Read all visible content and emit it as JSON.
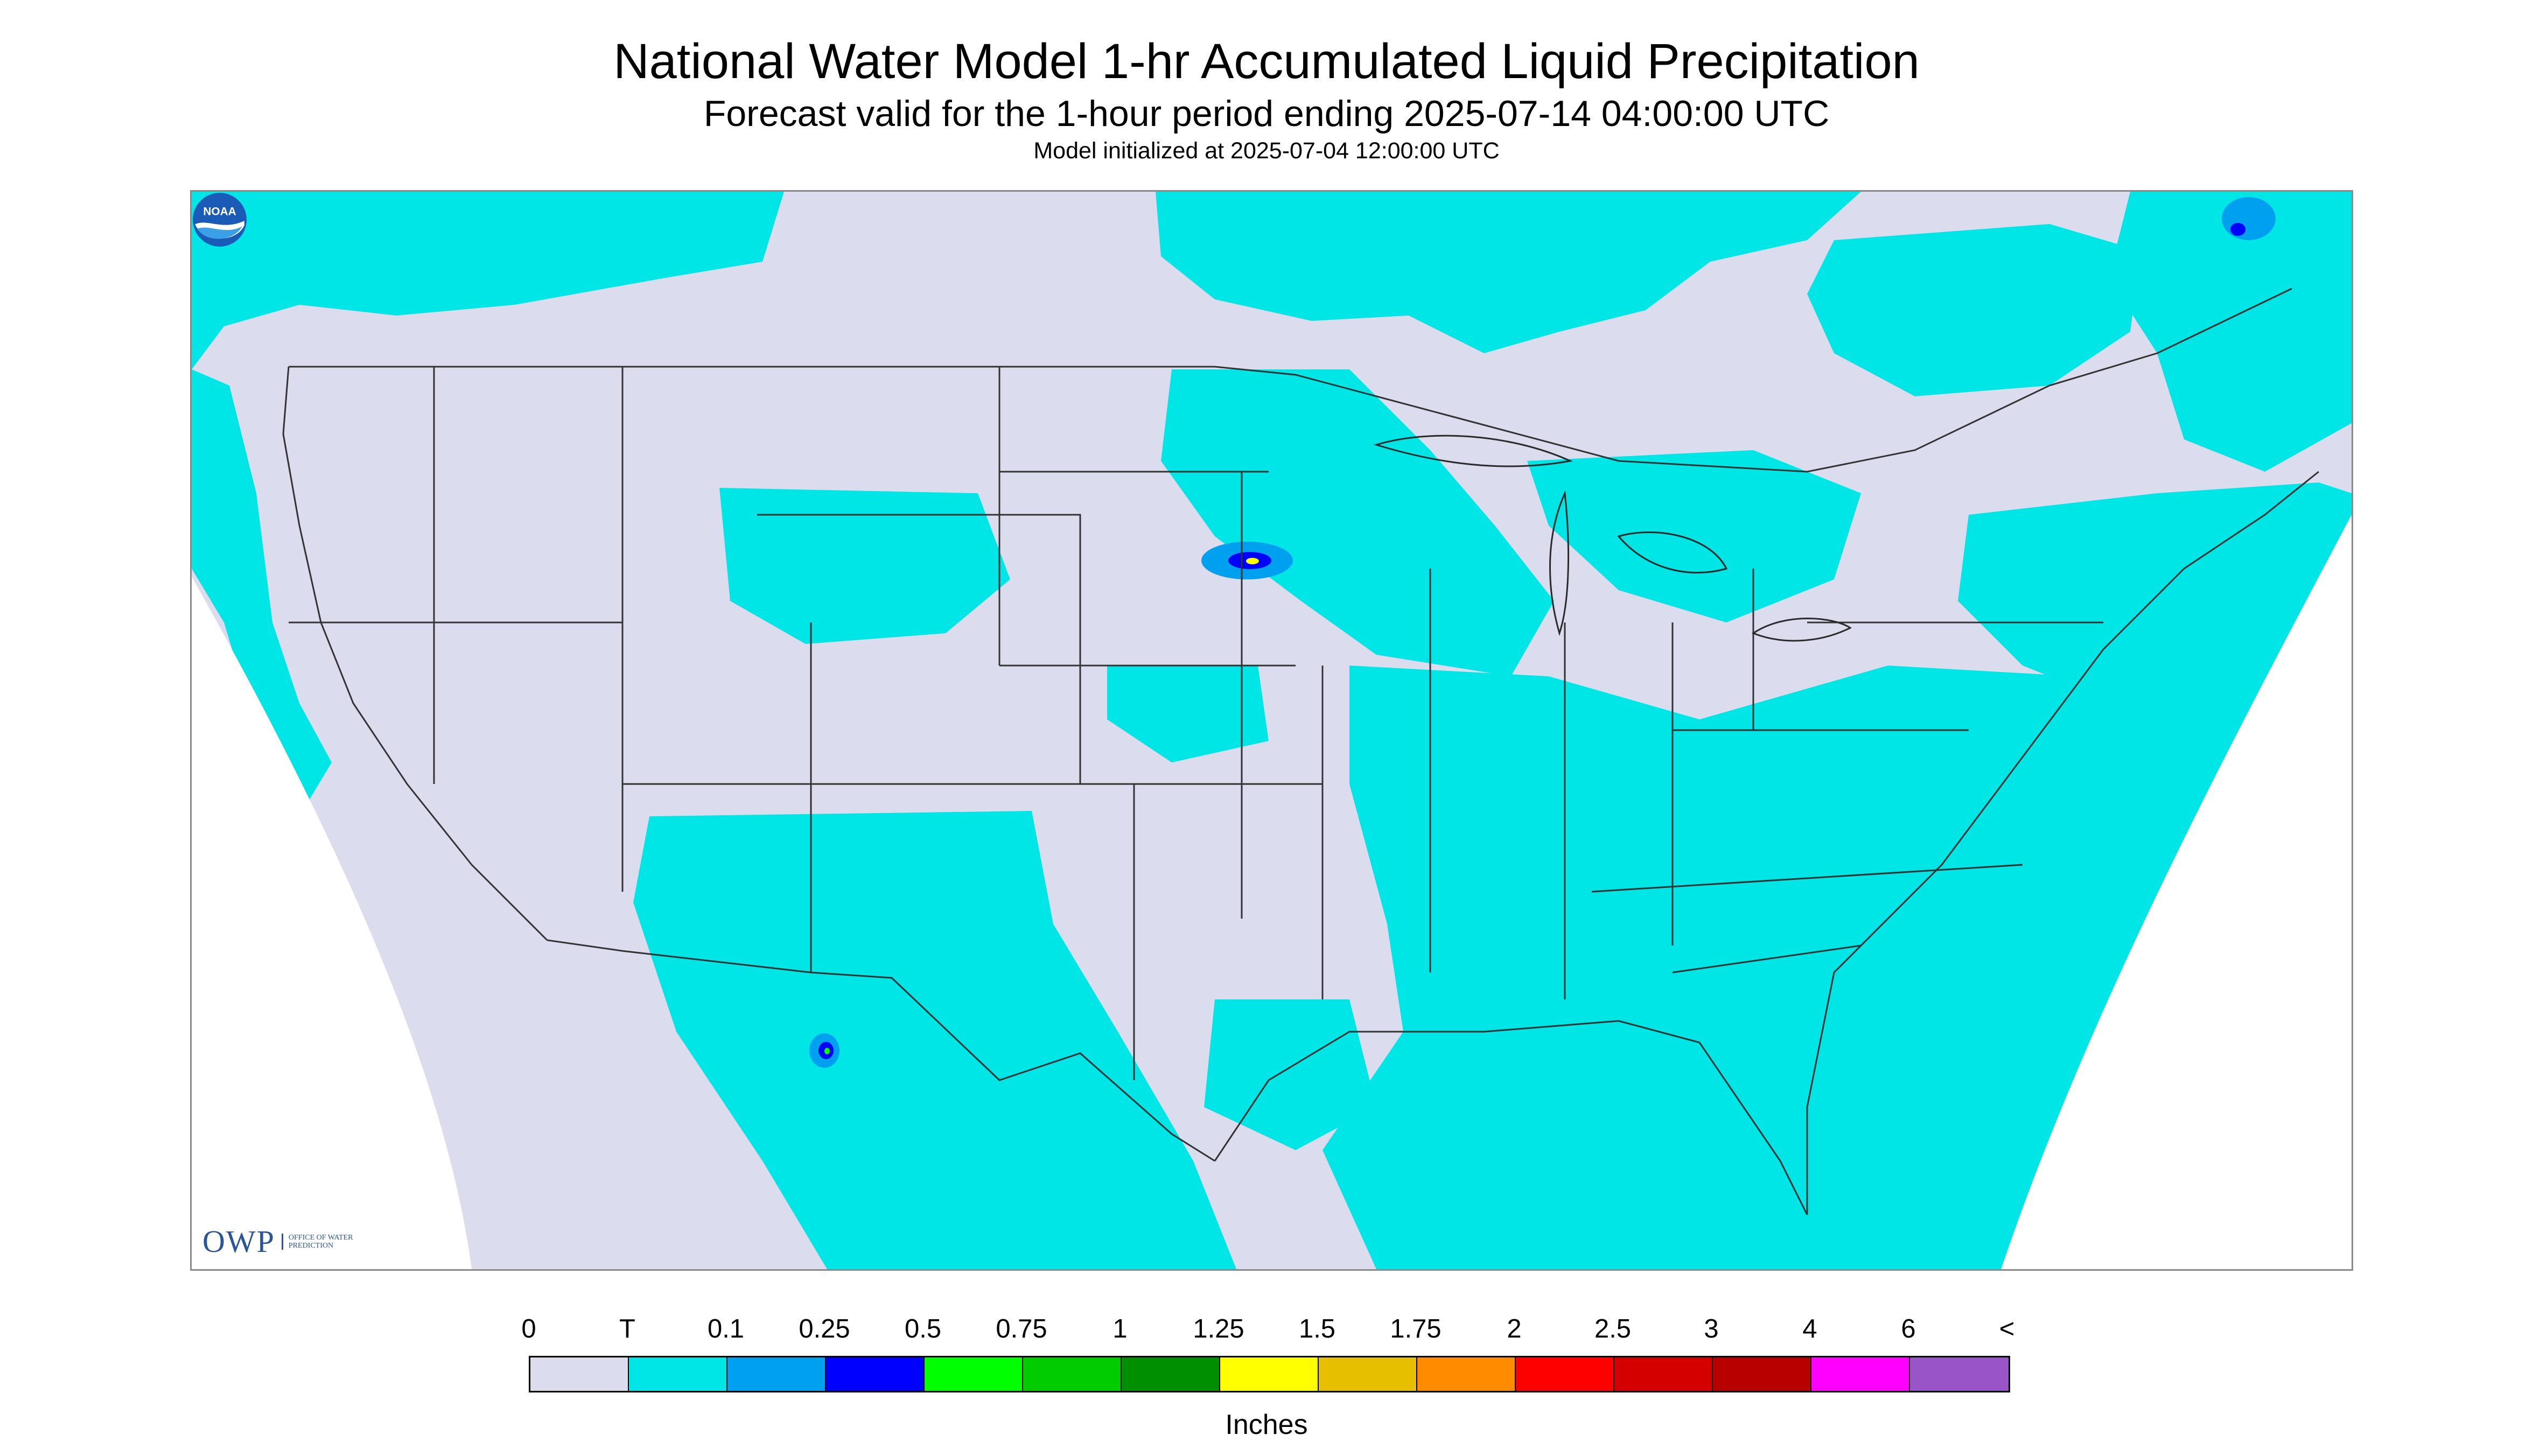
{
  "header": {
    "title": "National Water Model 1-hr Accumulated Liquid Precipitation",
    "subtitle": "Forecast valid for the 1-hour period ending 2025-07-14 04:00:00 UTC",
    "model_init": "Model initialized at 2025-07-04 12:00:00 UTC"
  },
  "map": {
    "region": "Continental United States",
    "background_color": "#dcdcef",
    "outside_domain_color": "#ffffff",
    "boundary_color": "#333333"
  },
  "logos": {
    "left": {
      "icon": "owp-logo",
      "text": "OWP",
      "subtext": "OFFICE OF WATER PREDICTION"
    },
    "right": {
      "icon": "noaa-logo",
      "text": "NOAA"
    }
  },
  "legend": {
    "labels": [
      "0",
      "T",
      "0.1",
      "0.25",
      "0.5",
      "0.75",
      "1",
      "1.25",
      "1.5",
      "1.75",
      "2",
      "2.5",
      "3",
      "4",
      "6",
      "<"
    ],
    "colors": [
      "#dcdcef",
      "#00e5e5",
      "#00a0f0",
      "#0000ff",
      "#00ff00",
      "#00cc00",
      "#008f00",
      "#ffff00",
      "#e5bf00",
      "#ff8c00",
      "#ff0000",
      "#d40000",
      "#b80000",
      "#ff00ff",
      "#9955c8"
    ],
    "units": "Inches"
  }
}
